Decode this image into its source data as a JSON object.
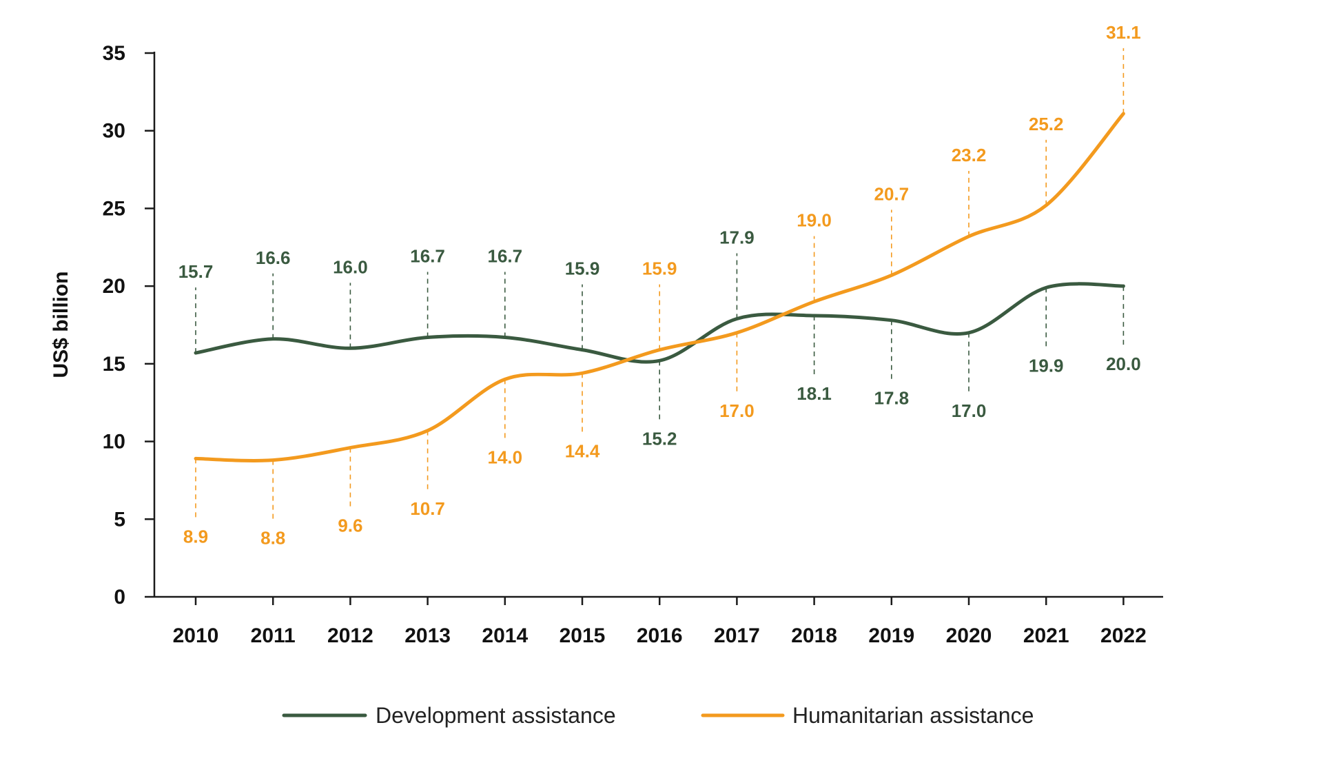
{
  "chart_data": {
    "type": "line",
    "title": "",
    "xlabel": "",
    "ylabel": "US$ billion",
    "ylim": [
      0,
      35
    ],
    "yticks": [
      0,
      5,
      10,
      15,
      20,
      25,
      30,
      35
    ],
    "categories": [
      "2010",
      "2011",
      "2012",
      "2013",
      "2014",
      "2015",
      "2016",
      "2017",
      "2018",
      "2019",
      "2020",
      "2021",
      "2022"
    ],
    "series": [
      {
        "name": "Development assistance",
        "color": "#3a5a40",
        "values": [
          15.7,
          16.6,
          16.0,
          16.7,
          16.7,
          15.9,
          15.2,
          17.9,
          18.1,
          17.8,
          17.0,
          19.9,
          20.0
        ],
        "labels": [
          "15.7",
          "16.6",
          "16.0",
          "16.7",
          "16.7",
          "15.9",
          "15.2",
          "17.9",
          "18.1",
          "17.8",
          "17.0",
          "19.9",
          "20.0"
        ],
        "label_positions": [
          "above",
          "above",
          "above",
          "above",
          "above",
          "above",
          "below",
          "above",
          "below",
          "below",
          "below",
          "below",
          "below"
        ]
      },
      {
        "name": "Humanitarian assistance",
        "color": "#f39a1e",
        "values": [
          8.9,
          8.8,
          9.6,
          10.7,
          14.0,
          14.4,
          15.9,
          17.0,
          19.0,
          20.7,
          23.2,
          25.2,
          31.1
        ],
        "labels": [
          "8.9",
          "8.8",
          "9.6",
          "10.7",
          "14.0",
          "14.4",
          "15.9",
          "17.0",
          "19.0",
          "20.7",
          "23.2",
          "25.2",
          "31.1"
        ],
        "label_positions": [
          "below",
          "below",
          "below",
          "below",
          "below",
          "below",
          "above",
          "below",
          "above",
          "above",
          "above",
          "above",
          "above"
        ]
      }
    ],
    "legend": {
      "position": "bottom-center",
      "entries": [
        "Development assistance",
        "Humanitarian assistance"
      ]
    }
  }
}
